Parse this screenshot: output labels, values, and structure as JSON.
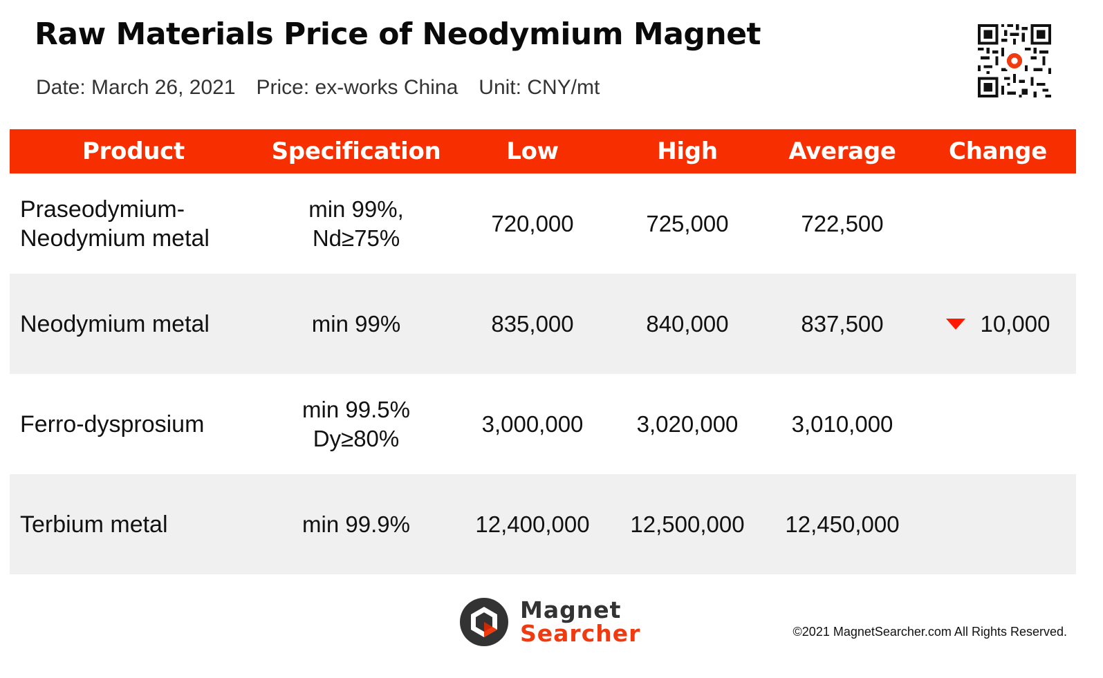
{
  "title": "Raw Materials Price of Neodymium Magnet",
  "meta": {
    "date": "Date: March 26, 2021",
    "price": "Price: ex-works China",
    "unit": "Unit: CNY/mt"
  },
  "table": {
    "headers": [
      "Product",
      "Specification",
      "Low",
      "High",
      "Average",
      "Change"
    ],
    "rows": [
      {
        "product_l1": "Praseodymium-",
        "product_l2": "Neodymium metal",
        "spec_l1": "min 99%,",
        "spec_l2": "Nd≥75%",
        "low": "720,000",
        "high": "725,000",
        "average": "722,500",
        "change": ""
      },
      {
        "product_l1": "Neodymium metal",
        "product_l2": "",
        "spec_l1": "min 99%",
        "spec_l2": "",
        "low": "835,000",
        "high": "840,000",
        "average": "837,500",
        "change": "10,000",
        "change_direction": "down"
      },
      {
        "product_l1": "Ferro-dysprosium",
        "product_l2": "",
        "spec_l1": "min 99.5%",
        "spec_l2": "Dy≥80%",
        "low": "3,000,000",
        "high": "3,020,000",
        "average": "3,010,000",
        "change": ""
      },
      {
        "product_l1": "Terbium metal",
        "product_l2": "",
        "spec_l1": "min 99.9%",
        "spec_l2": "",
        "low": "12,400,000",
        "high": "12,500,000",
        "average": "12,450,000",
        "change": ""
      }
    ]
  },
  "logo": {
    "line1": "Magnet",
    "line2": "Searcher"
  },
  "footer": "©2021 MagnetSearcher.com All Rights Reserved.",
  "colors": {
    "header_bg": "#f72f00",
    "row_shade": "#f0f0f0",
    "down_arrow": "#ff1a00",
    "brand_orange": "#f03a10"
  },
  "icons": {
    "qr": "qr-code-icon",
    "logo": "magnet-searcher-logo-icon",
    "change": "triangle-down-icon"
  }
}
